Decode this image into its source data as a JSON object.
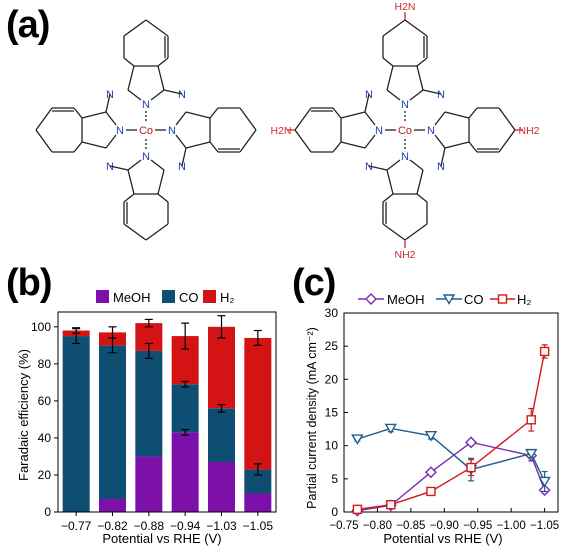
{
  "panels": {
    "a": "(a)",
    "b": "(b)",
    "c": "(c)"
  },
  "colors": {
    "meoh": "#7d10a8",
    "co": "#0e4e72",
    "h2": "#d41414",
    "meoh_line": "#7b2bb0",
    "co_line": "#1f5f8c",
    "h2_line": "#d31a1a",
    "bond": "#222222",
    "nitrogen": "#1f3fb4",
    "cobalt": "#b02020",
    "amine": "#cc2b2b"
  },
  "molecules": {
    "left": {
      "center_atom": "Co",
      "n_label": "N"
    },
    "right": {
      "center_atom": "Co",
      "n_label": "N",
      "substituent_top": "H2N",
      "substituent_left": "H2N",
      "substituent_right": "NH2",
      "substituent_bottom": "NH2"
    }
  },
  "chart_data": [
    {
      "type": "bar",
      "stacked": true,
      "categories": [
        "−0.77",
        "−0.82",
        "−0.88",
        "−0.94",
        "−1.03",
        "−1.05"
      ],
      "series": [
        {
          "name": "MeOH",
          "values": [
            0,
            7,
            30,
            43,
            27,
            10
          ]
        },
        {
          "name": "CO",
          "values": [
            95,
            83,
            57,
            26,
            29,
            13
          ]
        },
        {
          "name": "H2",
          "values": [
            3,
            7,
            15,
            26,
            44,
            71
          ]
        }
      ],
      "error_tops": [
        {
          "series": "CO",
          "values": [
            95,
            90,
            87,
            69,
            56,
            23
          ],
          "err": [
            4,
            4,
            4,
            1.5,
            2,
            3
          ]
        },
        {
          "series": "MeOH",
          "values": [
            null,
            null,
            null,
            43,
            null,
            null
          ],
          "err": [
            0,
            0,
            0,
            1.5,
            0,
            0
          ]
        },
        {
          "series": "H2",
          "values": [
            98,
            97,
            102,
            95,
            100,
            94
          ],
          "err": [
            1.5,
            3,
            2,
            7,
            6,
            4
          ]
        }
      ],
      "xlabel": "Potential vs RHE (V)",
      "ylabel": "Faradaic efficiency (%)",
      "ylim": [
        0,
        108
      ],
      "yticks": [
        0,
        20,
        40,
        60,
        80,
        100
      ],
      "legend": [
        "MeOH",
        "CO",
        "H2"
      ],
      "legend_display": {
        "MeOH": "MeOH",
        "CO": "CO",
        "H2": "H₂"
      },
      "legend_position": "top-right"
    },
    {
      "type": "line",
      "x": [
        -0.77,
        -0.82,
        -0.88,
        -0.94,
        -1.03,
        -1.05
      ],
      "series": [
        {
          "name": "MeOH",
          "marker": "diamond",
          "values": [
            0.2,
            1.0,
            6.0,
            10.5,
            8.5,
            3.3
          ],
          "err": [
            0.2,
            0.2,
            0.3,
            0.4,
            0.8,
            0.3
          ]
        },
        {
          "name": "CO",
          "marker": "triangle-down",
          "values": [
            11.0,
            12.6,
            11.5,
            6.4,
            8.8,
            4.6
          ],
          "err": [
            0.3,
            0.5,
            0.5,
            1.7,
            0.6,
            1.5
          ]
        },
        {
          "name": "H2",
          "marker": "square",
          "values": [
            0.4,
            1.1,
            3.1,
            6.7,
            13.9,
            24.2
          ],
          "err": [
            0.3,
            0.3,
            0.3,
            1.2,
            1.7,
            1.0
          ]
        }
      ],
      "xlabel": "Potential vs RHE (V)",
      "ylabel": "Partial current density (mA cm⁻²)",
      "xlim": [
        -0.75,
        -1.07
      ],
      "ylim": [
        0,
        30
      ],
      "xticks": [
        "−0.75",
        "−0.80",
        "−0.85",
        "−0.90",
        "−0.95",
        "−1.00",
        "−1.05"
      ],
      "yticks": [
        0,
        5,
        10,
        15,
        20,
        25,
        30
      ],
      "legend": [
        "MeOH",
        "CO",
        "H2"
      ],
      "legend_display": {
        "MeOH": "MeOH",
        "CO": "CO",
        "H2": "H₂"
      },
      "legend_position": "top"
    }
  ]
}
